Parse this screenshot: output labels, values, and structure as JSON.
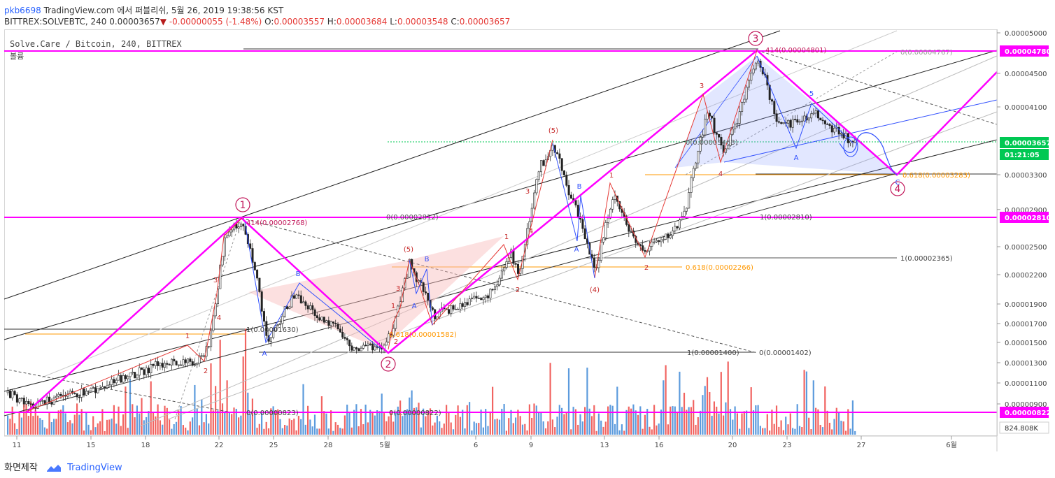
{
  "header": {
    "user": "pkb6698",
    "published": "TradingView.com 에서 퍼블리쉬, 5월 26, 2019 19:38:56 KST",
    "ticker": "BITTREX:SOLVEBTC, 240",
    "last": "0.00003657",
    "change": "-0.00000055 (-1.48%)",
    "o_label": "O:",
    "o": "0.00003557",
    "h_label": "H:",
    "h": "0.00003684",
    "l_label": "L:",
    "l": "0.00003548",
    "c_label": "C:",
    "c": "0.00003657"
  },
  "chart_title": "Solve.Care / Bitcoin, 240, BITTREX",
  "volume_label": "볼륨",
  "footer": {
    "made_with": "화면제작",
    "brand": "TradingView"
  },
  "colors": {
    "magenta": "#ff00ff",
    "up": "#4a4a4a",
    "down": "#333333",
    "vol_up": "#4a90d9",
    "vol_down": "#ef5350",
    "last": "#00c853",
    "fib": "#ff9800"
  },
  "chart_data": {
    "type": "candlestick",
    "symbol": "BITTREX:SOLVEBTC",
    "interval": "240",
    "y_ticks": [
      "0.00005000",
      "0.00004500",
      "0.00004100",
      "0.00003300",
      "0.00002900",
      "0.00002500",
      "0.00002200",
      "0.00001900",
      "0.00001700",
      "0.00001500",
      "0.00001300",
      "0.00001100",
      "0.00000900"
    ],
    "x_ticks": [
      "11",
      "15",
      "18",
      "22",
      "25",
      "28",
      "5월",
      "6",
      "9",
      "13",
      "16",
      "20",
      "23",
      "27",
      "6월"
    ],
    "price_flags": [
      {
        "label": "0.00004780",
        "value": 4.78e-05,
        "color": "#ff00ff"
      },
      {
        "label": "0.00003657",
        "value": 3.657e-05,
        "color": "#00c853"
      },
      {
        "label": "01:21:05",
        "value": 3.527e-05,
        "color": "#00c853"
      },
      {
        "label": "0.00002810",
        "value": 2.81e-05,
        "color": "#ff00ff"
      },
      {
        "label": "0.00000822",
        "value": 8.22e-06,
        "color": "#ff00ff"
      }
    ],
    "volume_flag": "824.808K",
    "fib_labels": [
      {
        "text": "414(0.00004801)",
        "value": 4.801e-05
      },
      {
        "text": "0(0.00004767)",
        "value": 4.767e-05
      },
      {
        "text": "0(0.00003463)",
        "value": 3.463e-05
      },
      {
        "text": "0.618(0.00003283)",
        "value": 3.283e-05
      },
      {
        "text": "0(0.00002812)",
        "value": 2.812e-05
      },
      {
        "text": "1(0.00002810)",
        "value": 2.81e-05
      },
      {
        "text": "414(0.00002768)",
        "value": 2.768e-05
      },
      {
        "text": "1(0.00002365)",
        "value": 2.365e-05
      },
      {
        "text": "0.618(0.00002266)",
        "value": 2.266e-05
      },
      {
        "text": "1(0.00001630)",
        "value": 1.63e-05
      },
      {
        "text": "0.618(0.00001582)",
        "value": 1.582e-05
      },
      {
        "text": "1(0.00001400)",
        "value": 1.4e-05
      },
      {
        "text": "0(0.00001402)",
        "value": 1.402e-05
      },
      {
        "text": "0(0.00000823)",
        "value": 8.23e-06
      },
      {
        "text": "0(0.00000822)",
        "value": 8.22e-06
      }
    ],
    "wave_labels": {
      "major": [
        "1",
        "2",
        "3",
        "4"
      ],
      "minor": [
        "1",
        "2",
        "3",
        "4",
        "5",
        "(5)",
        "(4)",
        "A",
        "B",
        "C",
        "2",
        "4"
      ]
    }
  }
}
